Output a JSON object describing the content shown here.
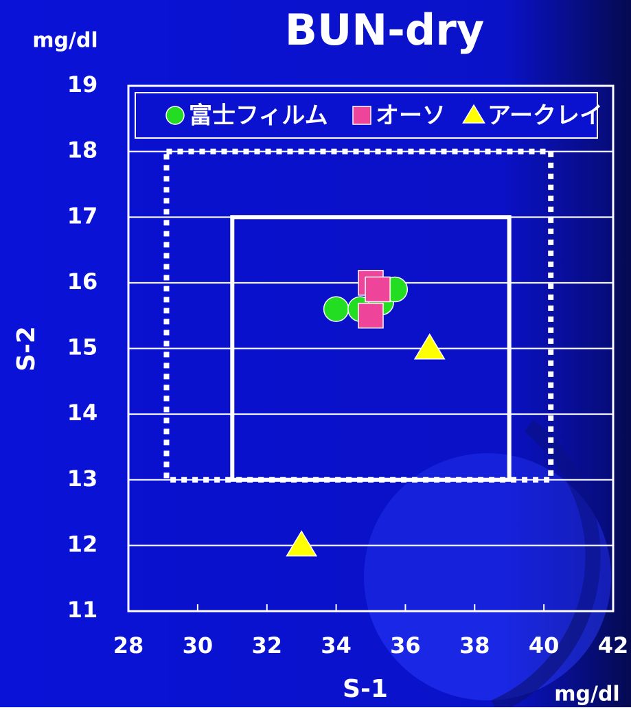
{
  "chart_data": {
    "type": "scatter",
    "title": "BUN-dry",
    "y_unit": "mg/dl",
    "x_unit": "mg/dl",
    "x_label": "S-1",
    "y_label": "S-2",
    "xlim": [
      28,
      42
    ],
    "xticks": [
      28,
      30,
      32,
      34,
      36,
      38,
      40,
      42
    ],
    "ylim": [
      11,
      19
    ],
    "yticks": [
      11,
      12,
      13,
      14,
      15,
      16,
      17,
      18,
      19
    ],
    "grid": true,
    "legend": "top",
    "series": [
      {
        "name": "富士フィルム",
        "color": "#22dd22",
        "marker": "circle",
        "x": [
          34.0,
          34.7,
          35.3,
          35.7
        ],
        "values": [
          15.6,
          15.6,
          15.7,
          15.9
        ]
      },
      {
        "name": "オーソ",
        "color": "#ee4499",
        "marker": "square",
        "x": [
          35.0,
          35.2,
          35.0
        ],
        "values": [
          16.0,
          15.9,
          15.5
        ]
      },
      {
        "name": "アークレイ",
        "color": "#ffff00",
        "marker": "triangle",
        "x": [
          36.7,
          33.0
        ],
        "values": [
          15.0,
          12.0
        ]
      }
    ],
    "ranges": [
      {
        "style": "solid",
        "x": [
          31,
          39
        ],
        "y": [
          13,
          17
        ]
      },
      {
        "style": "dotted",
        "x": [
          29.1,
          40.2
        ],
        "y": [
          13,
          18
        ]
      }
    ]
  }
}
